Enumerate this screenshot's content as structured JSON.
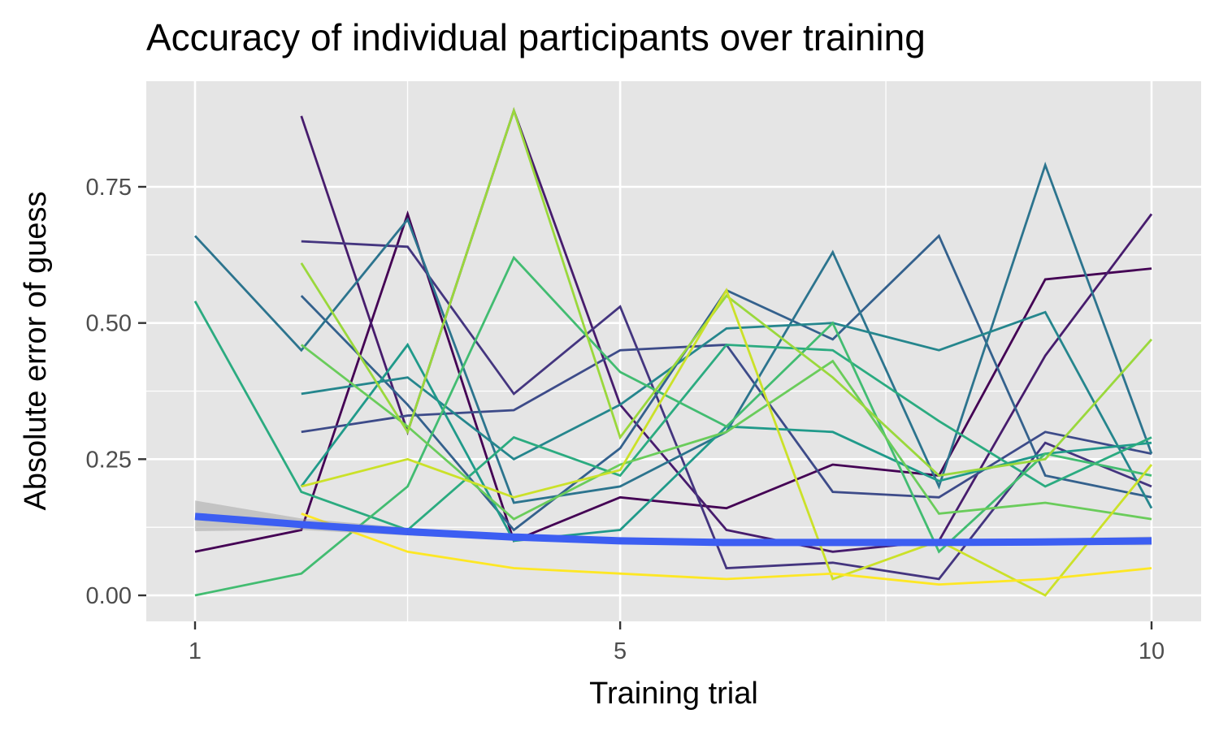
{
  "chart_data": {
    "type": "line",
    "title": "Accuracy of individual participants over training",
    "xlabel": "Training trial",
    "ylabel": "Absolute error of guess",
    "xlim": [
      1,
      10
    ],
    "ylim": [
      0,
      0.9
    ],
    "x_ticks": [
      1,
      5,
      10
    ],
    "y_ticks": [
      "0.00",
      "0.25",
      "0.50",
      "0.75"
    ],
    "y_tick_values": [
      0,
      0.25,
      0.5,
      0.75
    ],
    "grid": true,
    "background": "#e5e5e5",
    "palette": "viridis",
    "x": [
      1.0,
      2.0,
      3.0,
      4.0,
      5.0,
      6.0,
      7.0,
      8.0,
      9.0,
      10.0
    ],
    "series": [
      {
        "values": [
          0.08,
          0.12,
          0.7,
          0.1,
          0.18,
          0.16,
          0.24,
          0.22,
          0.58,
          0.6
        ]
      },
      {
        "values": [
          null,
          0.88,
          0.3,
          0.89,
          0.35,
          0.12,
          0.08,
          0.1,
          0.44,
          0.7
        ]
      },
      {
        "values": [
          null,
          0.65,
          0.64,
          0.37,
          0.53,
          0.05,
          0.06,
          0.03,
          0.28,
          0.2
        ]
      },
      {
        "values": [
          null,
          0.3,
          0.33,
          0.34,
          0.45,
          0.46,
          0.19,
          0.18,
          0.3,
          0.26
        ]
      },
      {
        "values": [
          null,
          0.55,
          0.35,
          0.12,
          0.27,
          0.56,
          0.47,
          0.66,
          0.22,
          0.18
        ]
      },
      {
        "values": [
          0.66,
          0.45,
          0.69,
          0.17,
          0.2,
          0.3,
          0.63,
          0.2,
          0.79,
          0.26
        ]
      },
      {
        "values": [
          null,
          0.37,
          0.4,
          0.25,
          0.35,
          0.49,
          0.5,
          0.45,
          0.52,
          0.16
        ]
      },
      {
        "values": [
          null,
          0.2,
          0.46,
          0.1,
          0.12,
          0.31,
          0.3,
          0.21,
          0.26,
          0.28
        ]
      },
      {
        "values": [
          0.54,
          0.19,
          0.12,
          0.29,
          0.22,
          0.46,
          0.45,
          0.32,
          0.2,
          0.29
        ]
      },
      {
        "values": [
          0.0,
          0.04,
          0.2,
          0.62,
          0.41,
          0.31,
          0.5,
          0.08,
          0.26,
          0.22
        ]
      },
      {
        "values": [
          null,
          0.46,
          0.31,
          0.14,
          0.24,
          0.3,
          0.43,
          0.15,
          0.17,
          0.14
        ]
      },
      {
        "values": [
          null,
          0.61,
          0.3,
          0.89,
          0.29,
          0.55,
          0.4,
          0.22,
          0.25,
          0.47
        ]
      },
      {
        "values": [
          null,
          0.2,
          0.25,
          0.18,
          0.23,
          0.56,
          0.03,
          0.1,
          0.0,
          0.24
        ]
      },
      {
        "values": [
          null,
          0.15,
          0.08,
          0.05,
          0.04,
          0.03,
          0.04,
          0.02,
          0.03,
          0.05
        ]
      }
    ],
    "smooth": {
      "color": "#3c5ef2",
      "x": [
        1,
        2,
        3,
        4,
        5,
        6,
        7,
        8,
        9,
        10
      ],
      "values": [
        0.145,
        0.13,
        0.117,
        0.107,
        0.1,
        0.097,
        0.097,
        0.097,
        0.098,
        0.1
      ],
      "ci_lower": [
        0.118,
        0.12,
        0.11,
        0.102,
        0.096,
        0.094,
        0.094,
        0.094,
        0.093,
        0.092
      ],
      "ci_upper": [
        0.174,
        0.141,
        0.124,
        0.112,
        0.104,
        0.1,
        0.1,
        0.1,
        0.104,
        0.108
      ]
    }
  }
}
